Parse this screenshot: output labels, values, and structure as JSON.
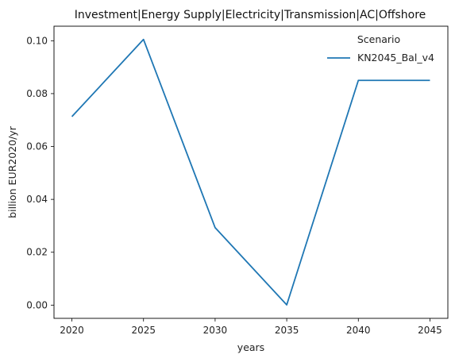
{
  "chart_data": {
    "type": "line",
    "title": "Investment|Energy Supply|Electricity|Transmission|AC|Offshore",
    "xlabel": "years",
    "ylabel": "billion EUR2020/yr",
    "x": [
      2020,
      2025,
      2030,
      2035,
      2040,
      2045
    ],
    "xticks": [
      "2020",
      "2025",
      "2030",
      "2035",
      "2040",
      "2045"
    ],
    "yticks": [
      "0.00",
      "0.02",
      "0.04",
      "0.06",
      "0.08",
      "0.10"
    ],
    "xlim": [
      2018.75,
      2046.25
    ],
    "ylim": [
      -0.005,
      0.1055
    ],
    "grid": false,
    "legend": {
      "title": "Scenario",
      "placement": "top-right"
    },
    "series": [
      {
        "name": "KN2045_Bal_v4",
        "color": "#1f77b4",
        "values": [
          0.0713,
          0.1005,
          0.0293,
          0.0001,
          0.085,
          0.085
        ]
      }
    ]
  }
}
